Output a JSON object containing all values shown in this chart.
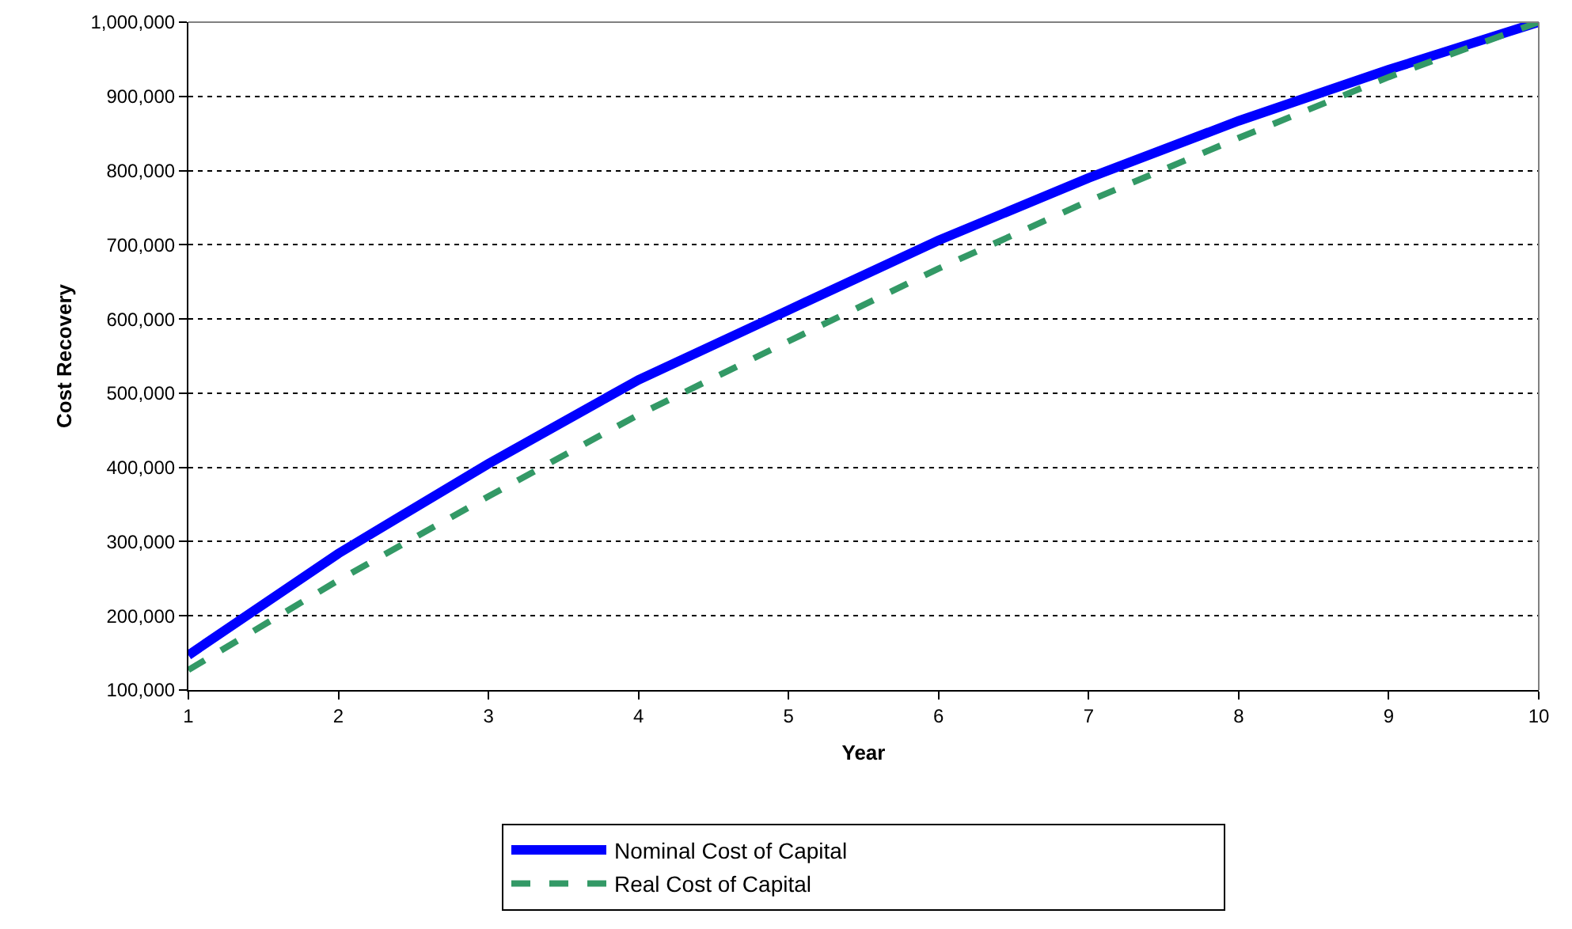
{
  "chart_data": {
    "type": "line",
    "xlabel": "Year",
    "ylabel": "Cost Recovery",
    "x": [
      1,
      2,
      3,
      4,
      5,
      6,
      7,
      8,
      9,
      10
    ],
    "series": [
      {
        "name": "Nominal Cost of Capital",
        "color": "#0000ff",
        "line_style": "solid",
        "values": [
          147000,
          284000,
          405000,
          518000,
          612000,
          706000,
          790000,
          867000,
          936000,
          1000000
        ]
      },
      {
        "name": "Real Cost of Capital",
        "color": "#339966",
        "line_style": "dashed",
        "values": [
          127000,
          248000,
          361000,
          471000,
          570000,
          668000,
          759000,
          844000,
          926000,
          1000000
        ]
      }
    ],
    "xlim": [
      1,
      10
    ],
    "xticks": [
      1,
      2,
      3,
      4,
      5,
      6,
      7,
      8,
      9,
      10
    ],
    "ylim": [
      100000,
      1000000
    ],
    "yticks": [
      {
        "value": 100000,
        "label": "100,000"
      },
      {
        "value": 200000,
        "label": "200,000"
      },
      {
        "value": 300000,
        "label": "300,000"
      },
      {
        "value": 400000,
        "label": "400,000"
      },
      {
        "value": 500000,
        "label": "500,000"
      },
      {
        "value": 600000,
        "label": "600,000"
      },
      {
        "value": 700000,
        "label": "700,000"
      },
      {
        "value": 800000,
        "label": "800,000"
      },
      {
        "value": 900000,
        "label": "900,000"
      },
      {
        "value": 1000000,
        "label": "1,000,000"
      }
    ],
    "grid": "y",
    "legend": "bottom",
    "marker": "none"
  }
}
